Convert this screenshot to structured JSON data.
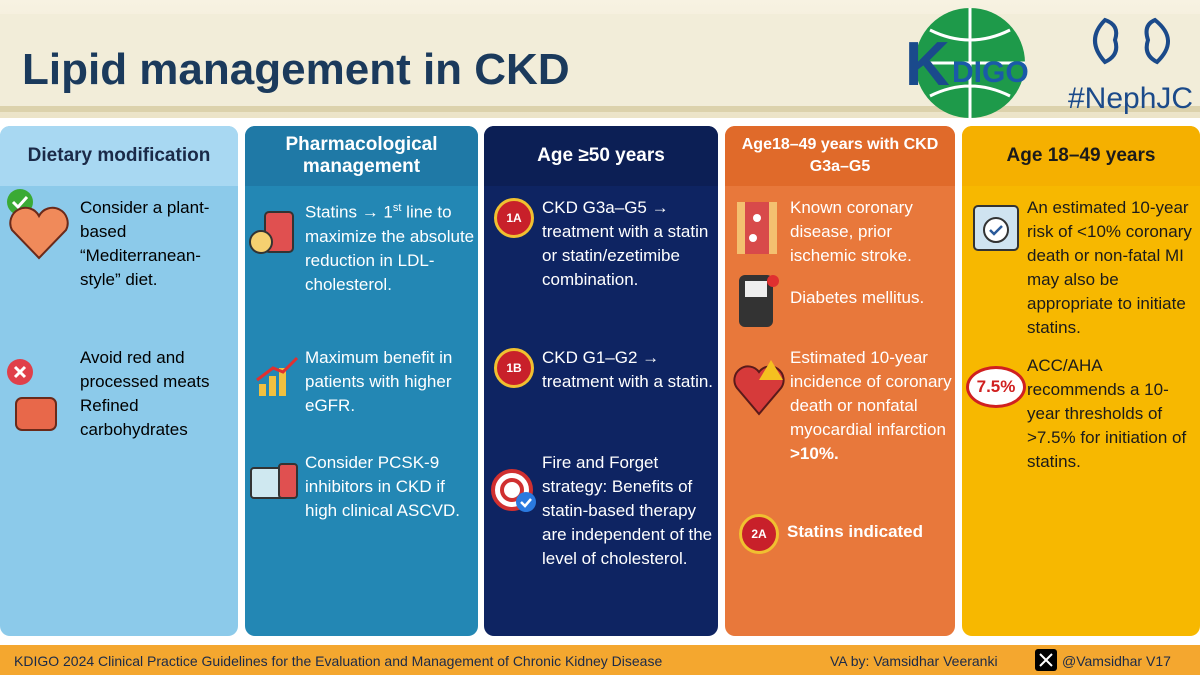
{
  "header": {
    "title": "Lipid management in CKD",
    "logo": "DIGO",
    "logo_letter": "K",
    "hashtag": "#NephJC"
  },
  "columns": [
    {
      "title": "Dietary modification",
      "items": [
        {
          "text": "Consider a plant-based “Mediterranean-style” diet."
        },
        {
          "text": "Avoid red and processed meats Refined carbohydrates"
        }
      ]
    },
    {
      "title": "Pharmacological management",
      "items": [
        {
          "text": "Statins → 1",
          "sup": "st",
          "text2": " line to maximize the absolute reduction in LDL-cholesterol."
        },
        {
          "text": "Maximum benefit in patients with higher eGFR."
        },
        {
          "text": "Consider PCSK-9 inhibitors in CKD if high clinical ASCVD."
        }
      ]
    },
    {
      "title": "Age ≥50 years",
      "items": [
        {
          "badge": "1A",
          "text": "CKD G3a–G5 → treatment with a statin or statin/ezetimibe combination."
        },
        {
          "badge": "1B",
          "text": "CKD G1–G2 → treatment with a statin."
        },
        {
          "text": "Fire and Forget strategy: Benefits of statin-based therapy are independent of the level of cholesterol."
        }
      ]
    },
    {
      "title": "Age18–49 years with CKD G3a–G5",
      "items": [
        {
          "text": "Known coronary disease, prior ischemic stroke."
        },
        {
          "text": "Diabetes mellitus."
        },
        {
          "text": "Estimated 10-year incidence of coronary death or nonfatal myocardial infarction ",
          "bold": ">10%."
        },
        {
          "badge": "2A",
          "bold": "Statins indicated"
        }
      ]
    },
    {
      "title": "Age 18–49 years",
      "items": [
        {
          "text": "An estimated 10-year risk of <10% coronary death or non-fatal MI may also be appropriate to initiate statins."
        },
        {
          "badge": "7.5%",
          "text": "ACC/AHA recommends a 10-year thresholds of >7.5%  for initiation of statins."
        }
      ]
    }
  ],
  "footer": {
    "citation": "KDIGO 2024 Clinical Practice Guidelines for the Evaluation and Management of Chronic Kidney Disease",
    "author": "VA by: Vamsidhar Veeranki",
    "handle": "@Vamsidhar V17"
  }
}
